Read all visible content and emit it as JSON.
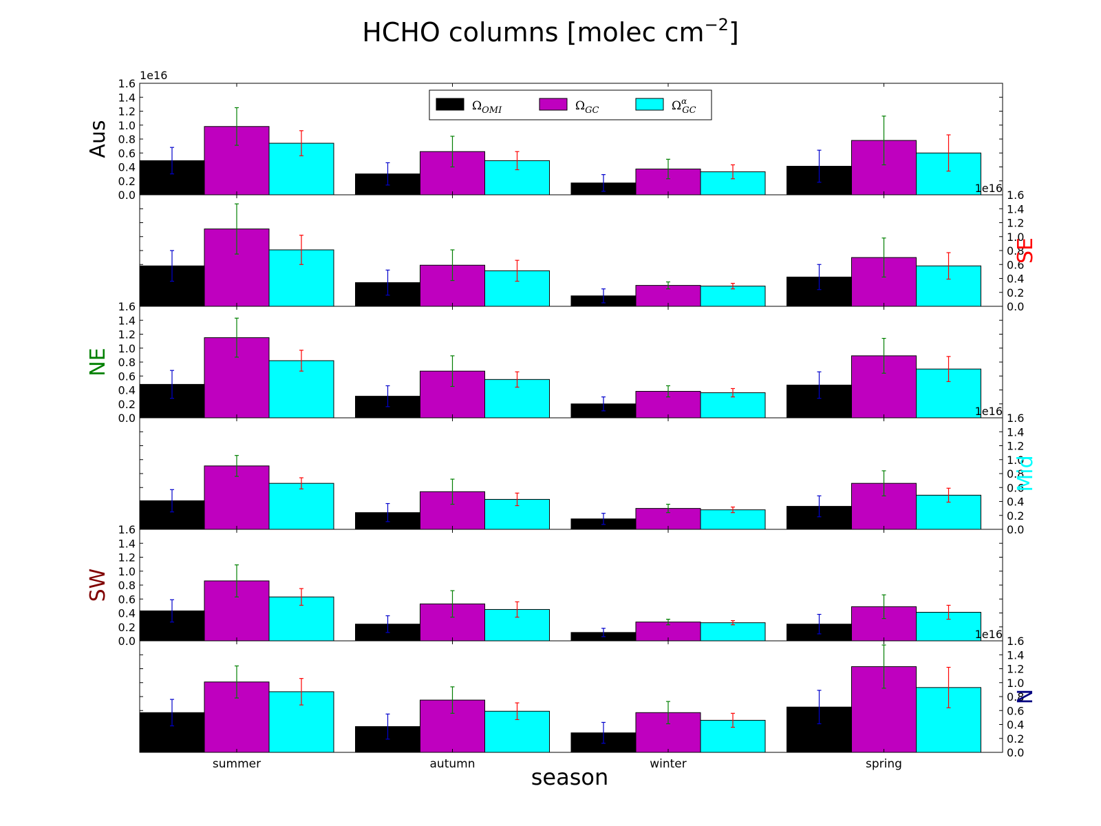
{
  "chart_data": {
    "type": "bar",
    "title_main": "HCHO columns [molec cm",
    "title_exp": "−2",
    "title_end": "]",
    "xlabel": "season",
    "categories": [
      "summer",
      "autumn",
      "winter",
      "spring"
    ],
    "ylim": [
      0,
      1.6
    ],
    "yticks": [
      "0.0",
      "0.2",
      "0.4",
      "0.6",
      "0.8",
      "1.0",
      "1.2",
      "1.4",
      "1.6"
    ],
    "y_offset_label": "1e16",
    "series_styles": [
      {
        "key": "omi",
        "color": "#000000",
        "err_color": "#0000cc"
      },
      {
        "key": "gc",
        "color": "#bf00bf",
        "err_color": "#008000"
      },
      {
        "key": "gca",
        "color": "#00ffff",
        "err_color": "#ff0000"
      }
    ],
    "legend": {
      "location": "upper center",
      "entries": [
        {
          "base": "Ω",
          "sub": "OMI",
          "sup": ""
        },
        {
          "base": "Ω",
          "sub": "GC",
          "sup": ""
        },
        {
          "base": "Ω",
          "sub": "GC",
          "sup": "α"
        }
      ]
    },
    "panels": [
      {
        "name": "Aus",
        "color": "#000000",
        "side": "left",
        "series": [
          {
            "values": [
              0.49,
              0.3,
              0.17,
              0.41
            ],
            "errors": [
              0.19,
              0.16,
              0.12,
              0.23
            ]
          },
          {
            "values": [
              0.98,
              0.62,
              0.37,
              0.78
            ],
            "errors": [
              0.27,
              0.22,
              0.14,
              0.35
            ]
          },
          {
            "values": [
              0.74,
              0.49,
              0.33,
              0.6
            ],
            "errors": [
              0.18,
              0.13,
              0.1,
              0.26
            ]
          }
        ]
      },
      {
        "name": "SE",
        "color": "#ff0000",
        "side": "right",
        "series": [
          {
            "values": [
              0.58,
              0.34,
              0.15,
              0.42
            ],
            "errors": [
              0.22,
              0.18,
              0.1,
              0.18
            ]
          },
          {
            "values": [
              1.11,
              0.59,
              0.3,
              0.7
            ],
            "errors": [
              0.36,
              0.22,
              0.05,
              0.28
            ]
          },
          {
            "values": [
              0.81,
              0.51,
              0.29,
              0.58
            ],
            "errors": [
              0.21,
              0.15,
              0.04,
              0.19
            ]
          }
        ]
      },
      {
        "name": "NE",
        "color": "#008000",
        "side": "left",
        "series": [
          {
            "values": [
              0.48,
              0.31,
              0.2,
              0.47
            ],
            "errors": [
              0.2,
              0.15,
              0.1,
              0.19
            ]
          },
          {
            "values": [
              1.15,
              0.67,
              0.38,
              0.89
            ],
            "errors": [
              0.28,
              0.22,
              0.08,
              0.25
            ]
          },
          {
            "values": [
              0.82,
              0.55,
              0.36,
              0.7
            ],
            "errors": [
              0.15,
              0.11,
              0.06,
              0.18
            ]
          }
        ]
      },
      {
        "name": "Mid",
        "color": "#00ffff",
        "side": "right",
        "series": [
          {
            "values": [
              0.41,
              0.24,
              0.15,
              0.33
            ],
            "errors": [
              0.16,
              0.13,
              0.08,
              0.15
            ]
          },
          {
            "values": [
              0.91,
              0.54,
              0.3,
              0.66
            ],
            "errors": [
              0.15,
              0.18,
              0.06,
              0.18
            ]
          },
          {
            "values": [
              0.66,
              0.43,
              0.28,
              0.49
            ],
            "errors": [
              0.08,
              0.09,
              0.04,
              0.1
            ]
          }
        ]
      },
      {
        "name": "SW",
        "color": "#800000",
        "side": "left",
        "series": [
          {
            "values": [
              0.43,
              0.24,
              0.12,
              0.24
            ],
            "errors": [
              0.16,
              0.12,
              0.06,
              0.14
            ]
          },
          {
            "values": [
              0.86,
              0.53,
              0.27,
              0.49
            ],
            "errors": [
              0.23,
              0.19,
              0.04,
              0.17
            ]
          },
          {
            "values": [
              0.63,
              0.45,
              0.26,
              0.41
            ],
            "errors": [
              0.12,
              0.11,
              0.03,
              0.1
            ]
          }
        ]
      },
      {
        "name": "N",
        "color": "#000080",
        "side": "right",
        "series": [
          {
            "values": [
              0.57,
              0.37,
              0.28,
              0.65
            ],
            "errors": [
              0.19,
              0.18,
              0.15,
              0.24
            ]
          },
          {
            "values": [
              1.01,
              0.75,
              0.57,
              1.23
            ],
            "errors": [
              0.23,
              0.19,
              0.16,
              0.31
            ]
          },
          {
            "values": [
              0.87,
              0.59,
              0.46,
              0.93
            ],
            "errors": [
              0.19,
              0.12,
              0.1,
              0.29
            ]
          }
        ]
      }
    ]
  }
}
